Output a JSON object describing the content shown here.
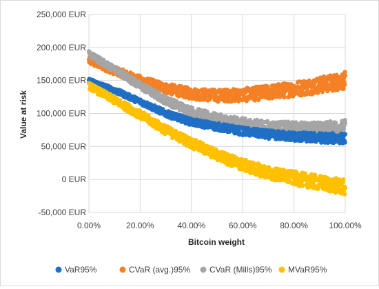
{
  "chart_data": {
    "type": "scatter",
    "title": "",
    "xlabel": "Bitcoin weight",
    "ylabel": "Value at risk",
    "xlim": [
      0,
      1
    ],
    "ylim": [
      -50000,
      250000
    ],
    "x_ticks": [
      "0.00%",
      "20.00%",
      "40.00%",
      "60.00%",
      "80.00%",
      "100.00%"
    ],
    "y_ticks": [
      "250,000 EUR",
      "200,000 EUR",
      "150,000 EUR",
      "100,000 EUR",
      "50,000 EUR",
      "0 EUR",
      "-50,000 EUR"
    ],
    "grid": true,
    "legend_position": "bottom",
    "series": [
      {
        "name": "VaR95%",
        "color": "#1f6fc5",
        "x": [
          0,
          0.1,
          0.2,
          0.3,
          0.4,
          0.5,
          0.6,
          0.7,
          0.8,
          0.9,
          1.0
        ],
        "y": [
          150000,
          135000,
          118000,
          100000,
          87000,
          80000,
          73000,
          68000,
          65000,
          63000,
          62000
        ],
        "spread": 6000
      },
      {
        "name": "CVaR (avg.)95%",
        "color": "#f58025",
        "x": [
          0,
          0.1,
          0.2,
          0.3,
          0.4,
          0.5,
          0.6,
          0.7,
          0.8,
          0.9,
          1.0
        ],
        "y": [
          180000,
          165000,
          150000,
          138000,
          130000,
          127000,
          128000,
          132000,
          137000,
          143000,
          150000
        ],
        "spread": 10000
      },
      {
        "name": "CVaR (Mills)95%",
        "color": "#a5a5a5",
        "x": [
          0,
          0.1,
          0.2,
          0.3,
          0.4,
          0.5,
          0.6,
          0.7,
          0.8,
          0.9,
          1.0
        ],
        "y": [
          190000,
          167000,
          142000,
          120000,
          103000,
          92000,
          85000,
          80000,
          78000,
          77000,
          80000
        ],
        "spread": 8000
      },
      {
        "name": "MVaR95%",
        "color": "#ffc000",
        "x": [
          0,
          0.1,
          0.2,
          0.3,
          0.4,
          0.5,
          0.6,
          0.7,
          0.8,
          0.9,
          1.0
        ],
        "y": [
          142000,
          120000,
          98000,
          75000,
          55000,
          37000,
          22000,
          10000,
          2000,
          -5000,
          -12000
        ],
        "spread": 9000
      }
    ]
  }
}
